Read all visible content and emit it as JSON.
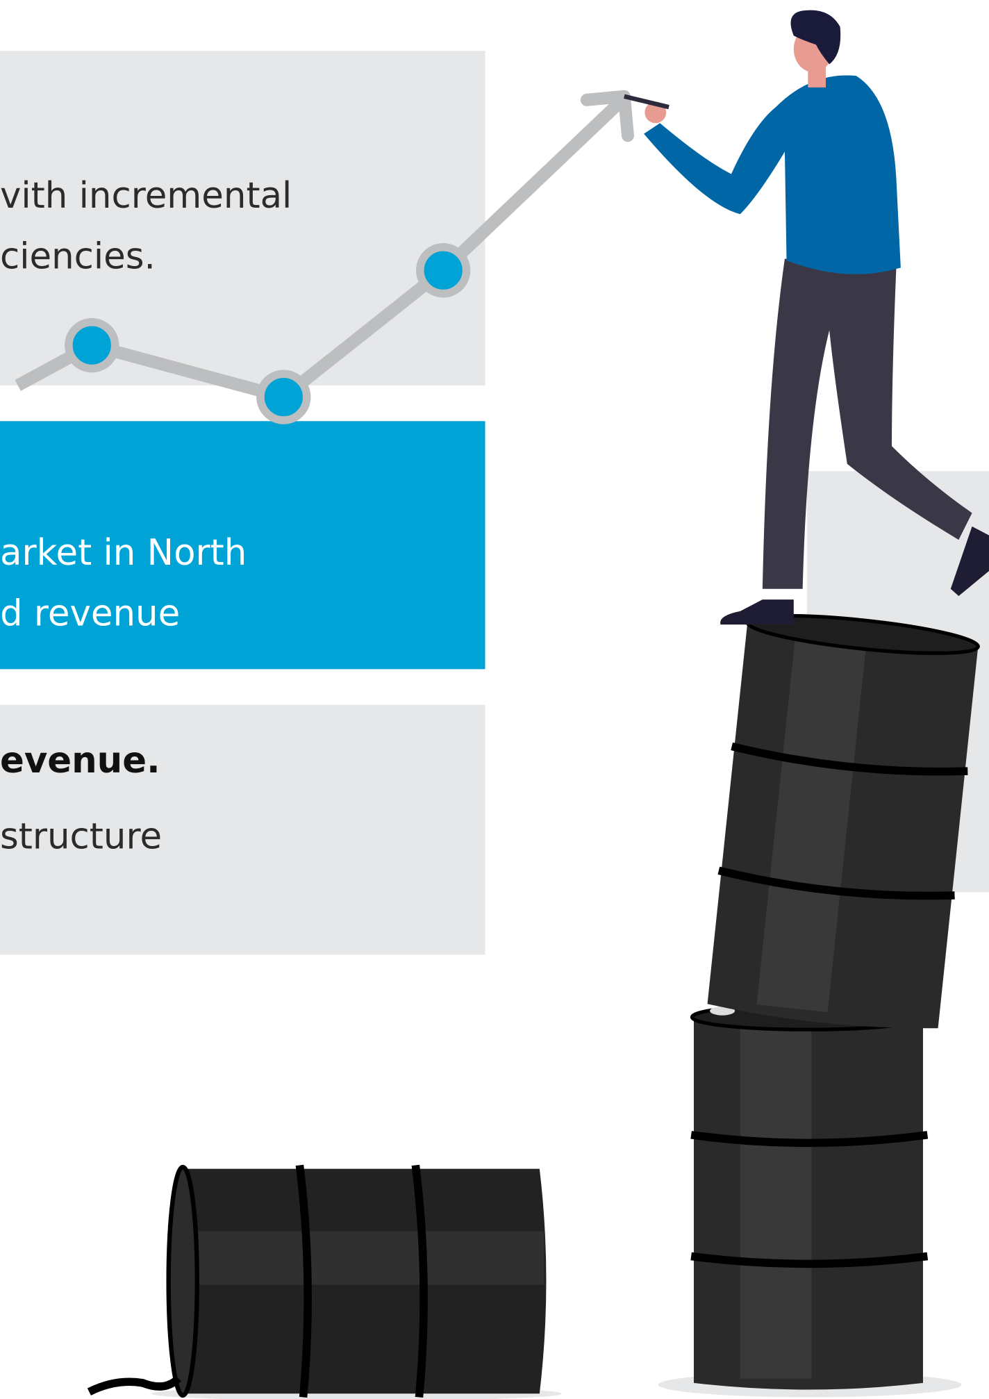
{
  "panels": [
    {
      "lines": [
        "vith incremental",
        "ciencies."
      ]
    },
    {
      "lines": [
        "arket in North",
        "d revenue"
      ]
    },
    {
      "lines": [
        "evenue.",
        "structure"
      ]
    }
  ]
}
